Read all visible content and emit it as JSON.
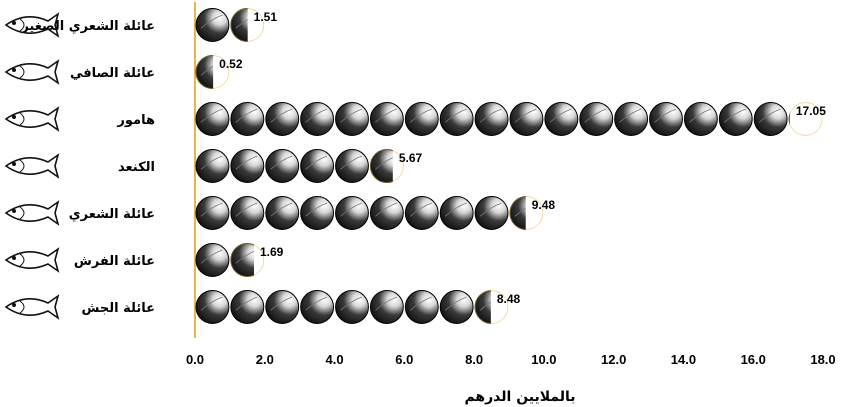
{
  "chart_data": {
    "type": "bar",
    "style": "pictogram",
    "icon": "coin-globe-icon",
    "categories": [
      "عائلة الشعري الصغير",
      "عائلة الصافي",
      "هامور",
      "الكنعد",
      "عائلة الشعري",
      "عائلة الفرش",
      "عائلة الجش"
    ],
    "values": [
      1.51,
      0.52,
      17.05,
      5.67,
      9.48,
      1.69,
      8.48
    ],
    "value_labels": [
      "1.51",
      "0.52",
      "17.05",
      "5.67",
      "9.48",
      "1.69",
      "8.48"
    ],
    "xlim": [
      0,
      18
    ],
    "xticks": [
      "0.0",
      "2.0",
      "4.0",
      "6.0",
      "8.0",
      "10.0",
      "12.0",
      "14.0",
      "16.0",
      "18.0"
    ],
    "xlabel": "بالملايين الدرهم",
    "ylabel": "",
    "title": "",
    "grid": false,
    "colors": {
      "icon_dark": "#1a1a1a",
      "icon_light": "#f4f4f4",
      "axis": "#e3b84a"
    }
  }
}
